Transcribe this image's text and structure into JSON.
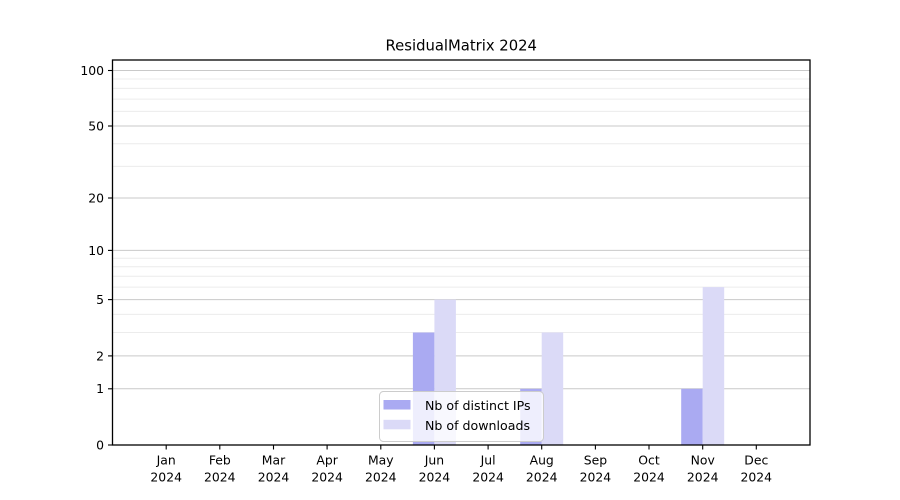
{
  "chart_data": {
    "type": "bar",
    "title": "ResidualMatrix 2024",
    "categories": [
      "Jan",
      "Feb",
      "Mar",
      "Apr",
      "May",
      "Jun",
      "Jul",
      "Aug",
      "Sep",
      "Oct",
      "Nov",
      "Dec"
    ],
    "x_sublabel": "2024",
    "series": [
      {
        "name": "Nb of distinct IPs",
        "color": "#aaaaf2",
        "values": [
          0,
          0,
          0,
          0,
          0,
          3,
          0,
          1,
          0,
          0,
          1,
          0
        ]
      },
      {
        "name": "Nb of downloads",
        "color": "#dbdaf7",
        "values": [
          0,
          0,
          0,
          0,
          0,
          5,
          0,
          3,
          0,
          0,
          6,
          0
        ]
      }
    ],
    "y_scale": "log1p",
    "ylim": [
      0,
      113
    ],
    "yticks": [
      0,
      1,
      2,
      5,
      10,
      20,
      50,
      100
    ],
    "minor_yticks": [
      3,
      4,
      6,
      7,
      8,
      9,
      30,
      40,
      60,
      70,
      80,
      90
    ],
    "grid": true,
    "legend": {
      "position": "lower center",
      "background": "rgba(255,255,255,0.8)",
      "border_color": "#cccccc"
    },
    "colors": {
      "major_grid": "#c9c9c9",
      "minor_grid": "#ececec",
      "axis": "#000000",
      "text": "#000000"
    }
  }
}
